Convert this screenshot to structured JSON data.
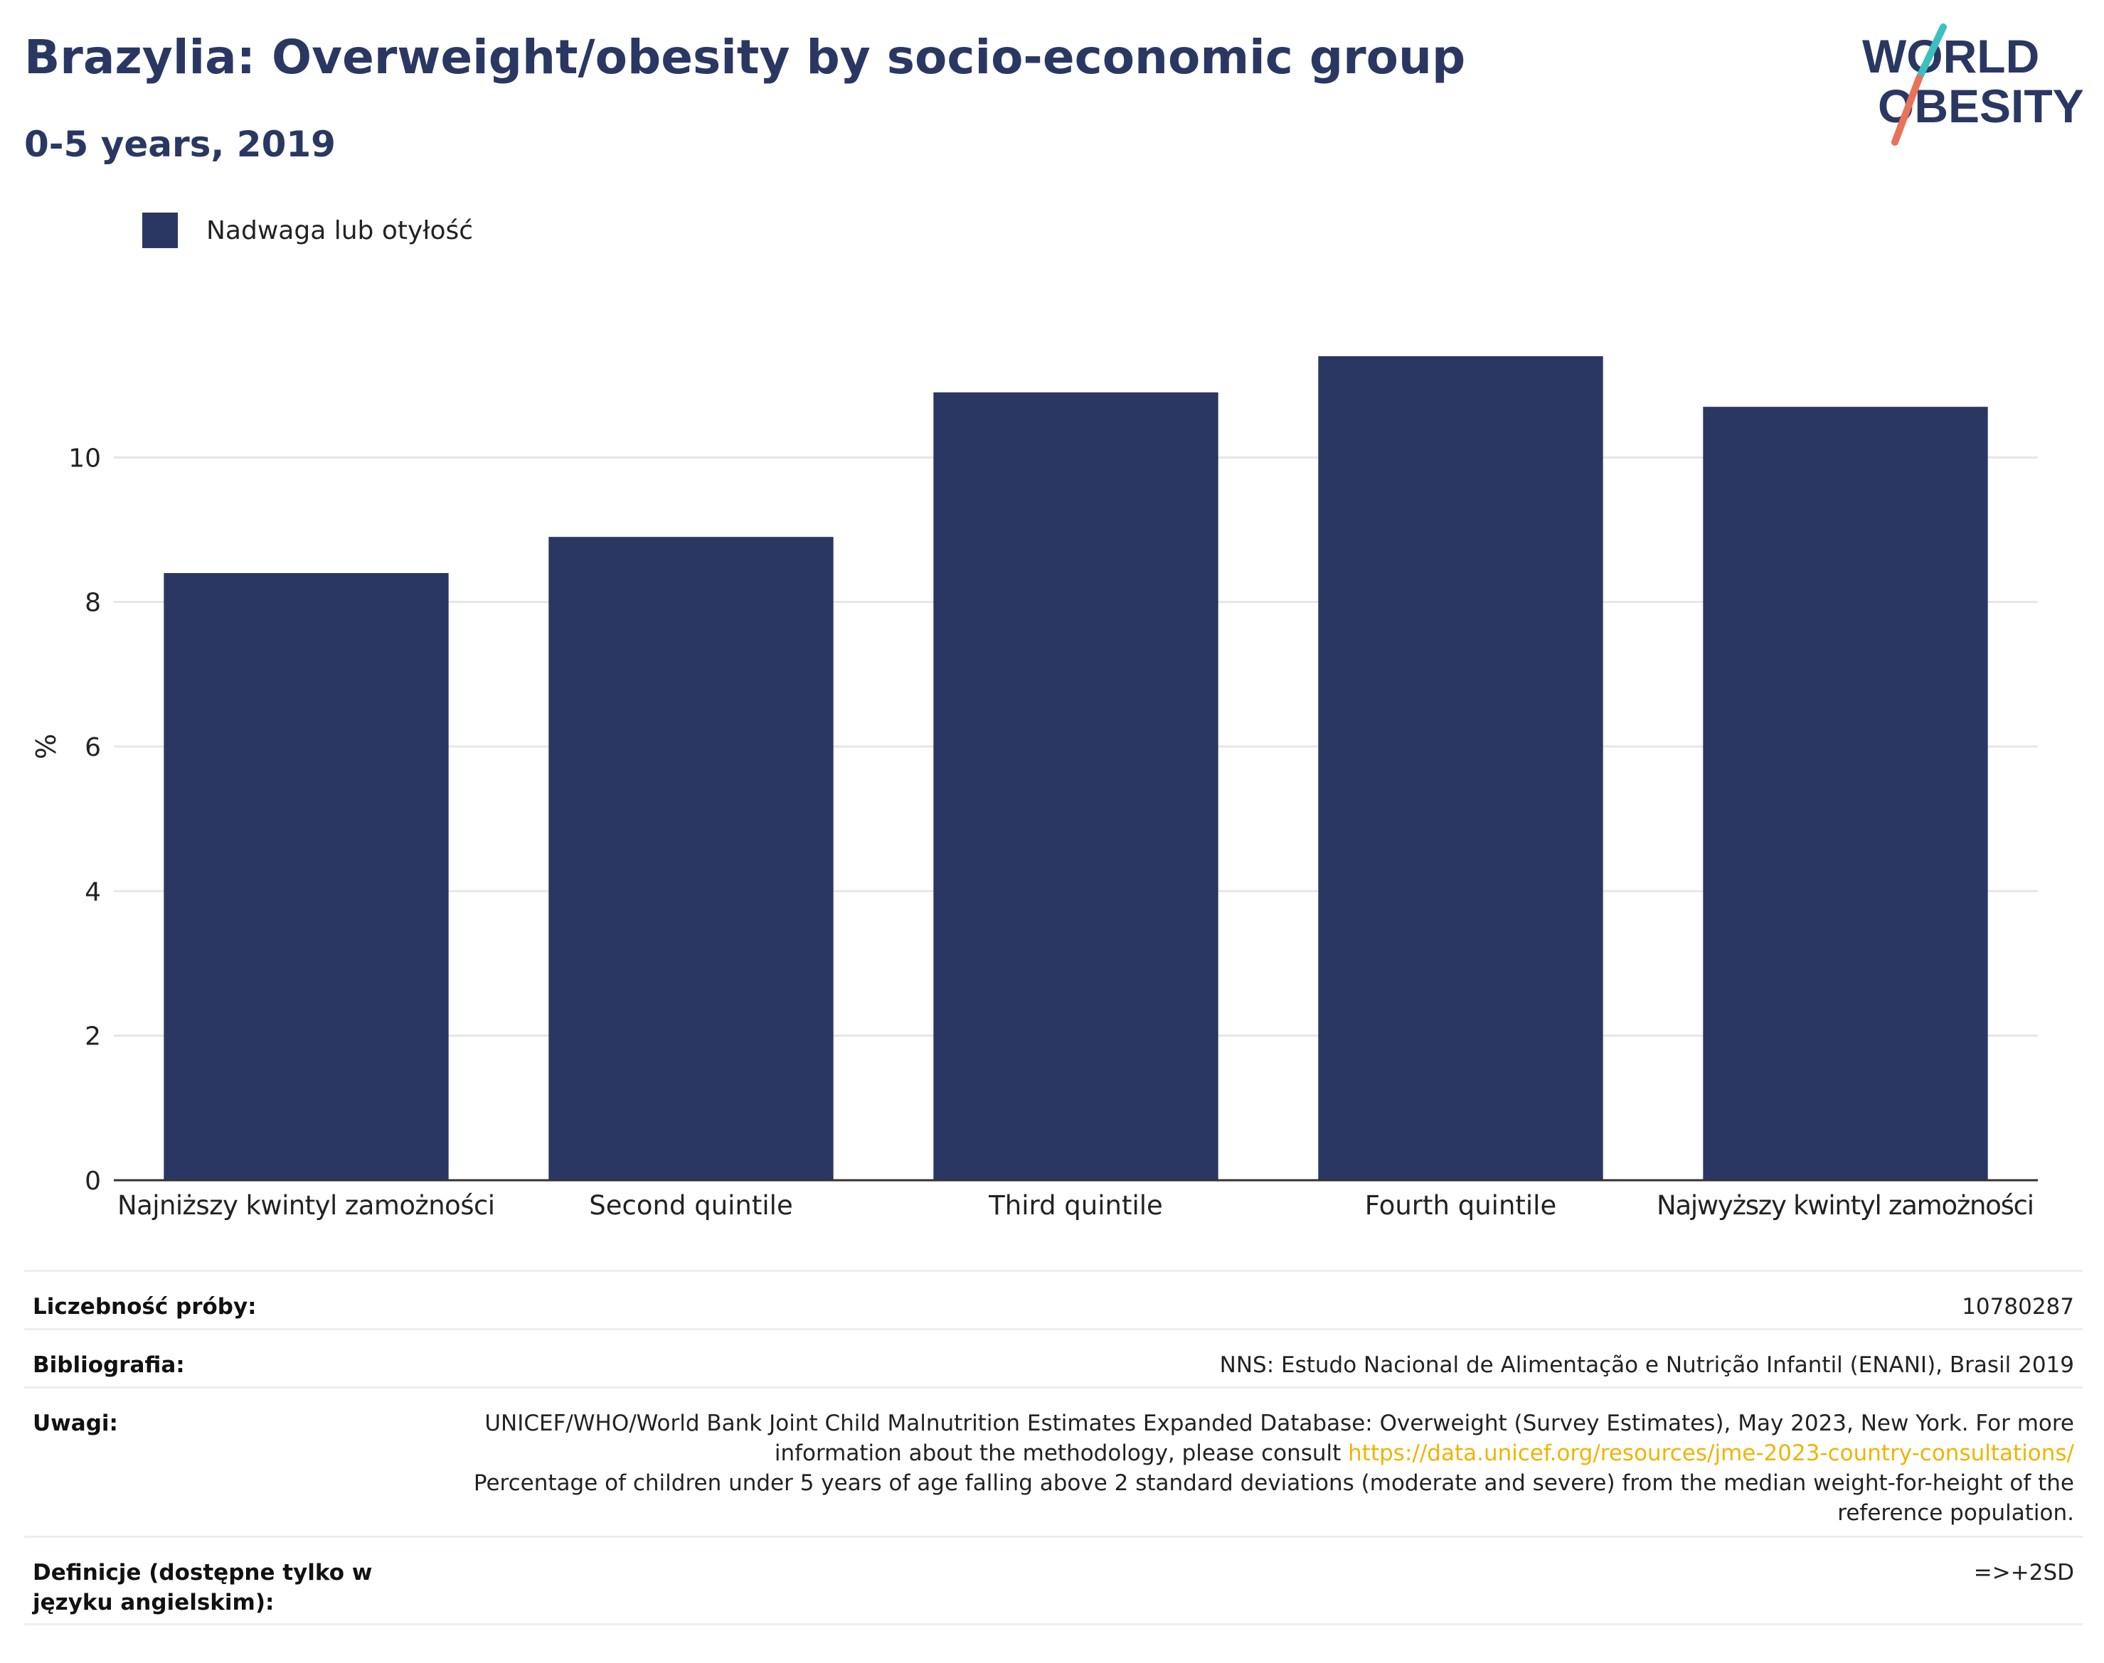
{
  "header": {
    "title": "Brazylia: Overweight/obesity by socio-economic group",
    "subtitle": "0-5 years, 2019"
  },
  "logo": {
    "line1": "WORLD",
    "line2": "OBESITY",
    "colors": {
      "text": "#2b3763",
      "slash_top": "#3cbfbf",
      "slash_bottom": "#e8735a"
    }
  },
  "colors": {
    "bar": "#2b3763",
    "grid": "#e6e6e6",
    "axis": "#333333",
    "link": "#f0b400"
  },
  "chart_data": {
    "type": "bar",
    "categories": [
      "Najniższy kwintyl zamożności",
      "Second quintile",
      "Third quintile",
      "Fourth quintile",
      "Najwyższy kwintyl zamożności"
    ],
    "series": [
      {
        "name": "Nadwaga lub otyłość",
        "values": [
          8.4,
          8.9,
          10.9,
          11.4,
          10.7
        ]
      }
    ],
    "ylabel": "%",
    "xlabel": "",
    "ylim": [
      0,
      12
    ],
    "yticks": [
      0,
      2,
      4,
      6,
      8,
      10
    ],
    "grid": true,
    "legend": "top-left"
  },
  "meta": {
    "sample": {
      "label": "Liczebność próby:",
      "value": "10780287"
    },
    "bibliography": {
      "label": "Bibliografia:",
      "value": "NNS: Estudo Nacional de Alimentação e Nutrição Infantil (ENANI), Brasil 2019"
    },
    "notes": {
      "label": "Uwagi:",
      "text1": "UNICEF/WHO/World Bank Joint Child Malnutrition Estimates Expanded Database: Overweight (Survey Estimates), May 2023, New York. For more information about the methodology, please consult ",
      "link": "https://data.unicef.org/resources/jme-2023-country-consultations/",
      "text2": "Percentage of children under 5 years of age falling above 2 standard deviations (moderate and severe) from the median weight-for-height of the reference population."
    },
    "definitions": {
      "label": "Definicje (dostępne tylko w języku angielskim):",
      "value": "=>+2SD"
    }
  }
}
